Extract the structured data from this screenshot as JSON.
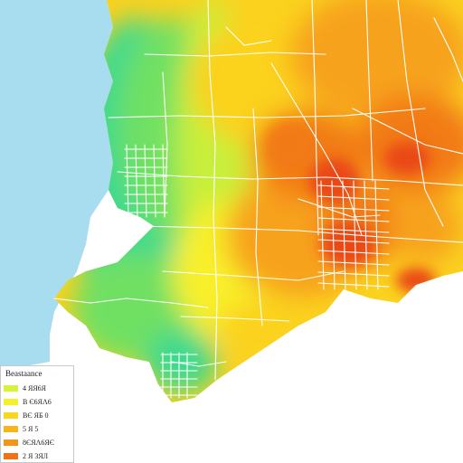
{
  "map": {
    "colors": {
      "water": "#a8ddef",
      "land_empty": "#ffffff",
      "scale": [
        "#3ed98f",
        "#6fe064",
        "#c8ef3a",
        "#f8f02a",
        "#fbd21f",
        "#f7a21a",
        "#f27a18",
        "#ea4a18"
      ],
      "roads": "#ffffff"
    }
  },
  "legend": {
    "title": "Beastaance",
    "items": [
      {
        "label": "4 ЯЯ6Я",
        "color": "#d8f23a"
      },
      {
        "label": "Β Є6ЯΛ6",
        "color": "#f4f02a"
      },
      {
        "label": "ВЄ ЯБ        0",
        "color": "#fbd61e"
      },
      {
        "label": "5 Я 5",
        "color": "#f8b51a"
      },
      {
        "label": "8ЄЯΛ6ЯЄ",
        "color": "#f5941a"
      },
      {
        "label": "2 Я 3ЯЛ",
        "color": "#f27218"
      }
    ]
  }
}
